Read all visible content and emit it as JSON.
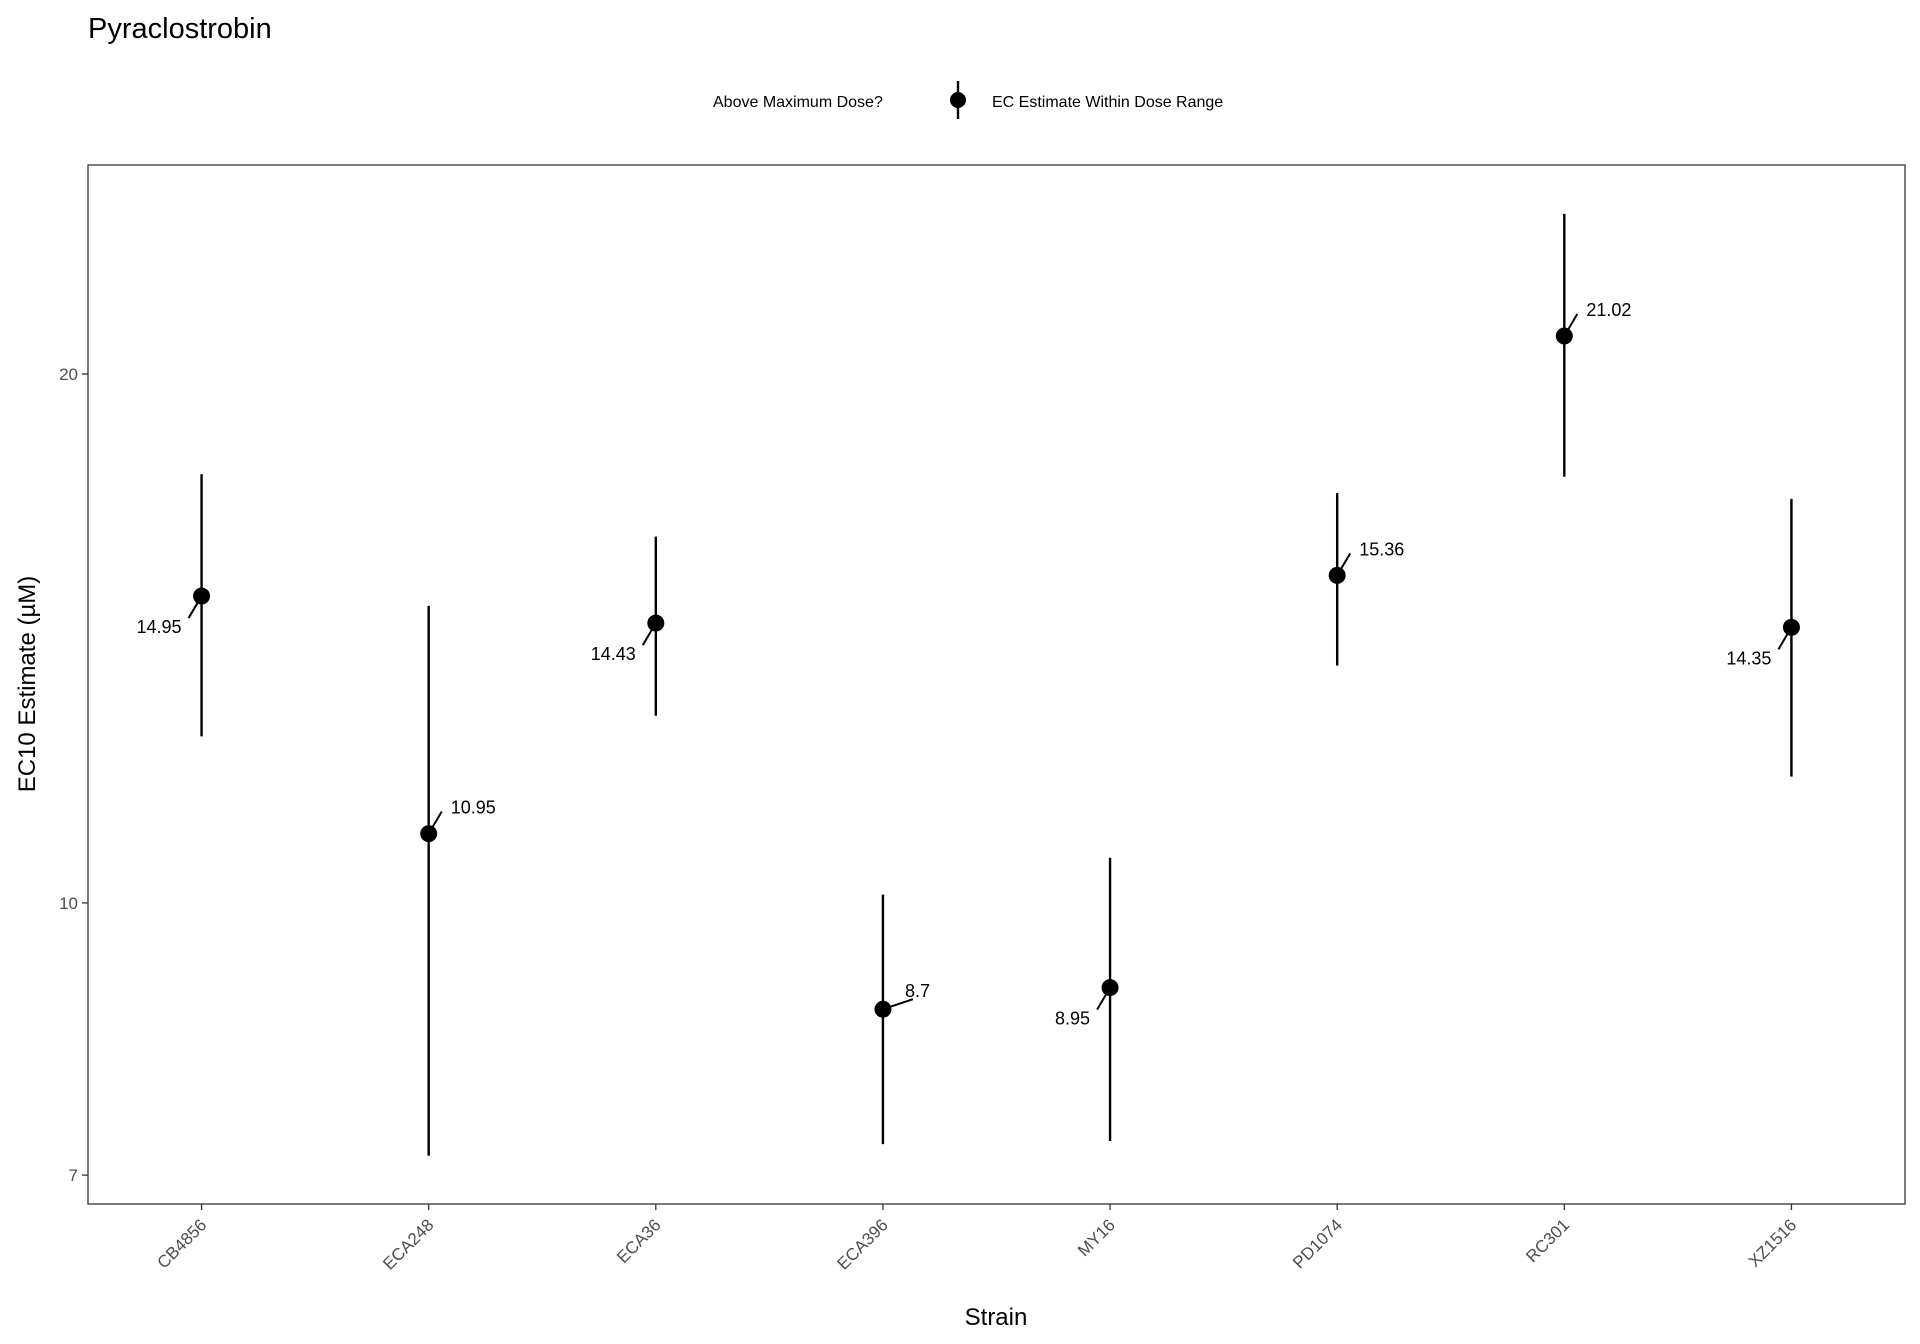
{
  "chart_data": {
    "type": "scatter",
    "title": "Pyraclostrobin",
    "xlabel": "Strain",
    "ylabel": "EC10 Estimate (µM)",
    "yscale": "log10",
    "ylim": [
      6.74,
      26.3
    ],
    "yticks": [
      7,
      10,
      20
    ],
    "grid": false,
    "legend": {
      "placement": "top",
      "title": "Above Maximum Dose?",
      "entries": [
        "EC Estimate Within Dose Range"
      ]
    },
    "categories": [
      "CB4856",
      "ECA248",
      "ECA36",
      "ECA396",
      "MY16",
      "PD1074",
      "RC301",
      "XZ1516"
    ],
    "values": [
      14.95,
      10.95,
      14.43,
      8.7,
      8.95,
      15.36,
      21.02,
      14.35
    ],
    "labels": [
      "14.95",
      "10.95",
      "14.43",
      "8.7",
      "8.95",
      "15.36",
      "21.02",
      "14.35"
    ],
    "lower": [
      12.44,
      7.18,
      12.78,
      7.29,
      7.32,
      13.65,
      17.48,
      11.8
    ],
    "upper": [
      17.54,
      14.76,
      16.16,
      10.11,
      10.61,
      17.11,
      24.67,
      16.98
    ]
  }
}
